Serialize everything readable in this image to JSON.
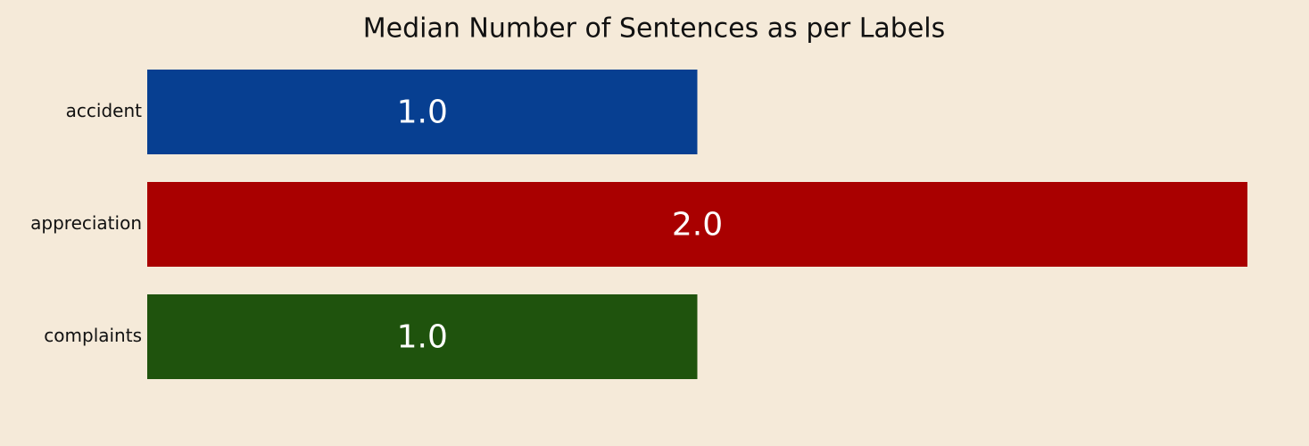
{
  "chart_data": {
    "type": "bar",
    "orientation": "horizontal",
    "title": "Median Number of Sentences as per Labels",
    "categories": [
      "accident",
      "appreciation",
      "complaints"
    ],
    "values": [
      1.0,
      2.0,
      1.0
    ],
    "value_labels": [
      "1.0",
      "2.0",
      "1.0"
    ],
    "colors": [
      "#073f91",
      "#a90000",
      "#1f530d"
    ],
    "background_color": "#f5ead9",
    "xlim": [
      0,
      2
    ],
    "xlabel": "",
    "ylabel": "",
    "grid": false,
    "legend": "none"
  }
}
